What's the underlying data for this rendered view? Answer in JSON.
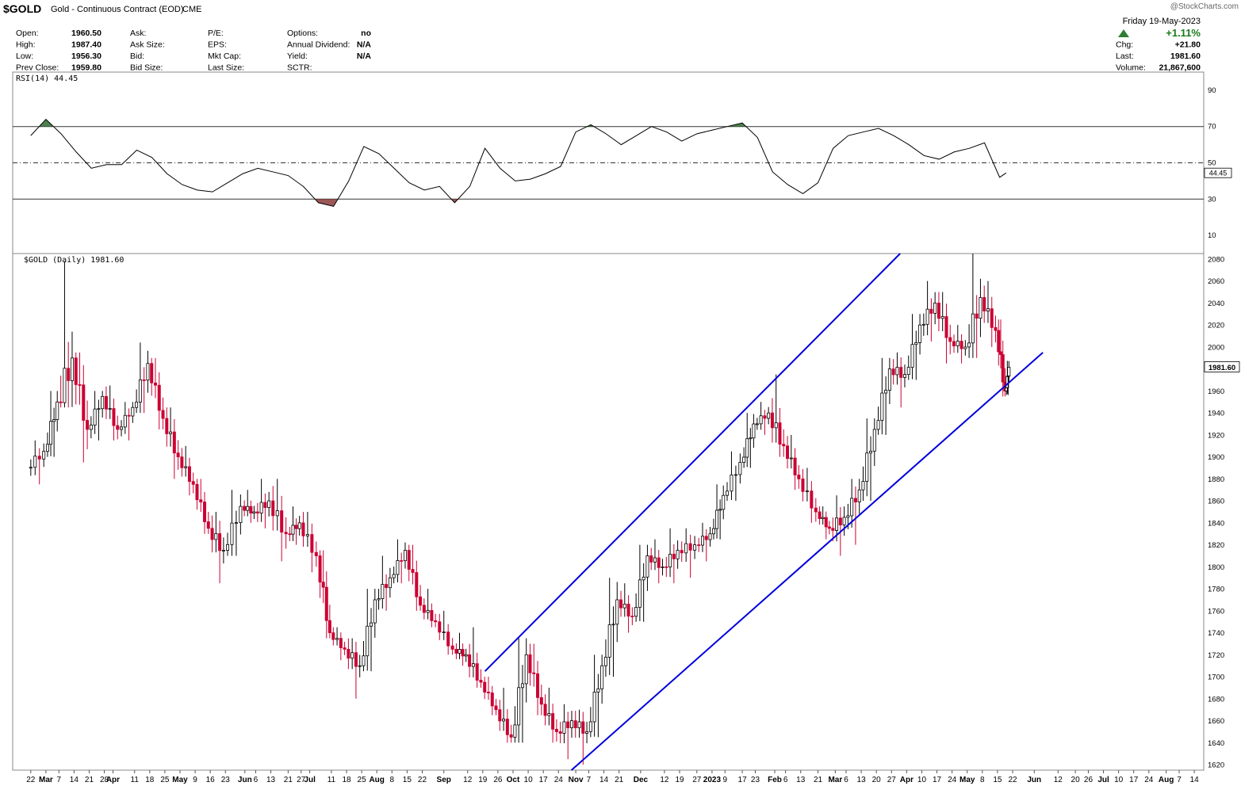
{
  "header": {
    "symbol": "$GOLD",
    "description": "Gold - Continuous Contract (EOD)",
    "exchange": "CME",
    "watermark": "@StockCharts.com",
    "date": "Friday  19-May-2023",
    "change_pct": "+1.11%",
    "quote": [
      {
        "label": "Open:",
        "value": "1960.50"
      },
      {
        "label": "High:",
        "value": "1987.40"
      },
      {
        "label": "Low:",
        "value": "1956.30"
      },
      {
        "label": "Prev Close:",
        "value": "1959.80"
      }
    ],
    "book": [
      {
        "label": "Ask:",
        "value": ""
      },
      {
        "label": "Ask Size:",
        "value": ""
      },
      {
        "label": "Bid:",
        "value": ""
      },
      {
        "label": "Bid Size:",
        "value": ""
      }
    ],
    "fundamentals": [
      {
        "label": "P/E:",
        "value": ""
      },
      {
        "label": "EPS:",
        "value": ""
      },
      {
        "label": "Mkt Cap:",
        "value": ""
      },
      {
        "label": "Last Size:",
        "value": ""
      }
    ],
    "other": [
      {
        "label": "Options:",
        "value": "no"
      },
      {
        "label": "Annual Dividend:",
        "value": "N/A"
      },
      {
        "label": "Yield:",
        "value": "N/A"
      },
      {
        "label": "SCTR:",
        "value": ""
      }
    ],
    "summary": [
      {
        "label": "Chg:",
        "value": "+21.80"
      },
      {
        "label": "Last:",
        "value": "1981.60"
      },
      {
        "label": "Volume:",
        "value": "21,867,600"
      }
    ]
  },
  "colors": {
    "up": "#000000",
    "down": "#cc0033",
    "trend": "#0000dd",
    "rsi_over": "#2e6b2e",
    "rsi_under": "#8b3a3a"
  },
  "chart_data": [
    {
      "type": "line",
      "title": "RSI(14) 44.45",
      "current_value_label": "44.45",
      "ylim": [
        0,
        100
      ],
      "yticks": [
        10,
        30,
        50,
        70,
        90
      ],
      "reference_lines": [
        30,
        50,
        70
      ],
      "x": [
        "2022-02-22",
        "2022-03-01",
        "2022-03-08",
        "2022-03-15",
        "2022-03-22",
        "2022-03-29",
        "2022-04-05",
        "2022-04-12",
        "2022-04-19",
        "2022-04-26",
        "2022-05-03",
        "2022-05-10",
        "2022-05-17",
        "2022-05-24",
        "2022-05-31",
        "2022-06-07",
        "2022-06-14",
        "2022-06-21",
        "2022-06-28",
        "2022-07-05",
        "2022-07-12",
        "2022-07-19",
        "2022-07-26",
        "2022-08-02",
        "2022-08-09",
        "2022-08-16",
        "2022-08-23",
        "2022-08-30",
        "2022-09-06",
        "2022-09-13",
        "2022-09-20",
        "2022-09-27",
        "2022-10-04",
        "2022-10-11",
        "2022-10-18",
        "2022-10-25",
        "2022-11-01",
        "2022-11-08",
        "2022-11-15",
        "2022-11-22",
        "2022-11-29",
        "2022-12-06",
        "2022-12-13",
        "2022-12-20",
        "2022-12-27",
        "2023-01-03",
        "2023-01-10",
        "2023-01-17",
        "2023-01-24",
        "2023-01-31",
        "2023-02-07",
        "2023-02-14",
        "2023-02-21",
        "2023-02-28",
        "2023-03-07",
        "2023-03-14",
        "2023-03-21",
        "2023-03-28",
        "2023-04-04",
        "2023-04-11",
        "2023-04-18",
        "2023-04-25",
        "2023-05-02",
        "2023-05-09",
        "2023-05-16",
        "2023-05-19"
      ],
      "values": [
        65,
        74,
        66,
        56,
        47,
        49,
        49,
        57,
        53,
        44,
        38,
        35,
        34,
        39,
        44,
        47,
        45,
        43,
        37,
        28,
        26,
        40,
        59,
        55,
        47,
        39,
        35,
        37,
        28,
        37,
        58,
        47,
        40,
        41,
        44,
        48,
        67,
        71,
        66,
        60,
        65,
        70,
        67,
        62,
        66,
        68,
        70,
        72,
        64,
        45,
        38,
        33,
        39,
        58,
        65,
        67,
        69,
        65,
        60,
        54,
        52,
        56,
        58,
        61,
        42,
        44.45
      ],
      "series": [
        {
          "name": "RSI(14)",
          "values": "see values"
        }
      ]
    },
    {
      "type": "candlestick",
      "title": "$GOLD (Daily) 1981.60",
      "current_value_label": "1981.60",
      "ylim": [
        1615,
        2085
      ],
      "yticks": [
        1620,
        1640,
        1660,
        1680,
        1700,
        1720,
        1740,
        1760,
        1780,
        1800,
        1820,
        1840,
        1860,
        1880,
        1900,
        1920,
        1940,
        1960,
        1980,
        2000,
        2020,
        2040,
        2060,
        2080
      ],
      "x_tick_labels": [
        {
          "d": "2022-02-22",
          "t": "22",
          "b": false
        },
        {
          "d": "2022-03-01",
          "t": "Mar",
          "b": true
        },
        {
          "d": "2022-03-07",
          "t": "7",
          "b": false
        },
        {
          "d": "2022-03-14",
          "t": "14",
          "b": false
        },
        {
          "d": "2022-03-21",
          "t": "21",
          "b": false
        },
        {
          "d": "2022-03-28",
          "t": "28",
          "b": false
        },
        {
          "d": "2022-04-01",
          "t": "Apr",
          "b": true
        },
        {
          "d": "2022-04-11",
          "t": "11",
          "b": false
        },
        {
          "d": "2022-04-18",
          "t": "18",
          "b": false
        },
        {
          "d": "2022-04-25",
          "t": "25",
          "b": false
        },
        {
          "d": "2022-05-02",
          "t": "May",
          "b": true
        },
        {
          "d": "2022-05-09",
          "t": "9",
          "b": false
        },
        {
          "d": "2022-05-16",
          "t": "16",
          "b": false
        },
        {
          "d": "2022-05-23",
          "t": "23",
          "b": false
        },
        {
          "d": "2022-06-01",
          "t": "Jun",
          "b": true
        },
        {
          "d": "2022-06-06",
          "t": "6",
          "b": false
        },
        {
          "d": "2022-06-13",
          "t": "13",
          "b": false
        },
        {
          "d": "2022-06-21",
          "t": "21",
          "b": false
        },
        {
          "d": "2022-06-27",
          "t": "27",
          "b": false
        },
        {
          "d": "2022-07-01",
          "t": "Jul",
          "b": true
        },
        {
          "d": "2022-07-11",
          "t": "11",
          "b": false
        },
        {
          "d": "2022-07-18",
          "t": "18",
          "b": false
        },
        {
          "d": "2022-07-25",
          "t": "25",
          "b": false
        },
        {
          "d": "2022-08-01",
          "t": "Aug",
          "b": true
        },
        {
          "d": "2022-08-08",
          "t": "8",
          "b": false
        },
        {
          "d": "2022-08-15",
          "t": "15",
          "b": false
        },
        {
          "d": "2022-08-22",
          "t": "22",
          "b": false
        },
        {
          "d": "2022-09-01",
          "t": "Sep",
          "b": true
        },
        {
          "d": "2022-09-12",
          "t": "12",
          "b": false
        },
        {
          "d": "2022-09-19",
          "t": "19",
          "b": false
        },
        {
          "d": "2022-09-26",
          "t": "26",
          "b": false
        },
        {
          "d": "2022-10-03",
          "t": "Oct",
          "b": true
        },
        {
          "d": "2022-10-10",
          "t": "10",
          "b": false
        },
        {
          "d": "2022-10-17",
          "t": "17",
          "b": false
        },
        {
          "d": "2022-10-24",
          "t": "24",
          "b": false
        },
        {
          "d": "2022-11-01",
          "t": "Nov",
          "b": true
        },
        {
          "d": "2022-11-07",
          "t": "7",
          "b": false
        },
        {
          "d": "2022-11-14",
          "t": "14",
          "b": false
        },
        {
          "d": "2022-11-21",
          "t": "21",
          "b": false
        },
        {
          "d": "2022-12-01",
          "t": "Dec",
          "b": true
        },
        {
          "d": "2022-12-12",
          "t": "12",
          "b": false
        },
        {
          "d": "2022-12-19",
          "t": "19",
          "b": false
        },
        {
          "d": "2022-12-27",
          "t": "27",
          "b": false
        },
        {
          "d": "2023-01-03",
          "t": "2023",
          "b": true
        },
        {
          "d": "2023-01-09",
          "t": "9",
          "b": false
        },
        {
          "d": "2023-01-17",
          "t": "17",
          "b": false
        },
        {
          "d": "2023-01-23",
          "t": "23",
          "b": false
        },
        {
          "d": "2023-02-01",
          "t": "Feb",
          "b": true
        },
        {
          "d": "2023-02-06",
          "t": "6",
          "b": false
        },
        {
          "d": "2023-02-13",
          "t": "13",
          "b": false
        },
        {
          "d": "2023-02-21",
          "t": "21",
          "b": false
        },
        {
          "d": "2023-03-01",
          "t": "Mar",
          "b": true
        },
        {
          "d": "2023-03-06",
          "t": "6",
          "b": false
        },
        {
          "d": "2023-03-13",
          "t": "13",
          "b": false
        },
        {
          "d": "2023-03-20",
          "t": "20",
          "b": false
        },
        {
          "d": "2023-03-27",
          "t": "27",
          "b": false
        },
        {
          "d": "2023-04-03",
          "t": "Apr",
          "b": true
        },
        {
          "d": "2023-04-10",
          "t": "10",
          "b": false
        },
        {
          "d": "2023-04-17",
          "t": "17",
          "b": false
        },
        {
          "d": "2023-04-24",
          "t": "24",
          "b": false
        },
        {
          "d": "2023-05-01",
          "t": "May",
          "b": true
        },
        {
          "d": "2023-05-08",
          "t": "8",
          "b": false
        },
        {
          "d": "2023-05-15",
          "t": "15",
          "b": false
        },
        {
          "d": "2023-05-22",
          "t": "22",
          "b": false
        },
        {
          "d": "2023-06-01",
          "t": "Jun",
          "b": true
        },
        {
          "d": "2023-06-12",
          "t": "12",
          "b": false
        },
        {
          "d": "2023-06-20",
          "t": "20",
          "b": false
        },
        {
          "d": "2023-06-26",
          "t": "26",
          "b": false
        },
        {
          "d": "2023-07-03",
          "t": "Jul",
          "b": true
        },
        {
          "d": "2023-07-10",
          "t": "10",
          "b": false
        },
        {
          "d": "2023-07-17",
          "t": "17",
          "b": false
        },
        {
          "d": "2023-07-24",
          "t": "24",
          "b": false
        },
        {
          "d": "2023-08-01",
          "t": "Aug",
          "b": true
        },
        {
          "d": "2023-08-07",
          "t": "7",
          "b": false
        },
        {
          "d": "2023-08-14",
          "t": "14",
          "b": false
        }
      ],
      "x_range": [
        "2022-02-14",
        "2023-08-18"
      ],
      "ohlc_weekly_approx": [
        [
          "2022-02-21",
          1890,
          1915,
          1875,
          1905
        ],
        [
          "2022-03-01",
          1905,
          1960,
          1900,
          1950
        ],
        [
          "2022-03-07",
          1950,
          2078,
          1945,
          1990
        ],
        [
          "2022-03-14",
          1990,
          1995,
          1895,
          1925
        ],
        [
          "2022-03-21",
          1925,
          1960,
          1915,
          1955
        ],
        [
          "2022-03-28",
          1955,
          1965,
          1915,
          1925
        ],
        [
          "2022-04-04",
          1925,
          1950,
          1915,
          1945
        ],
        [
          "2022-04-11",
          1945,
          2004,
          1940,
          1985
        ],
        [
          "2022-04-18",
          1985,
          1990,
          1925,
          1935
        ],
        [
          "2022-04-25",
          1935,
          1945,
          1880,
          1900
        ],
        [
          "2022-05-02",
          1900,
          1910,
          1865,
          1875
        ],
        [
          "2022-05-09",
          1875,
          1880,
          1830,
          1835
        ],
        [
          "2022-05-16",
          1835,
          1850,
          1785,
          1815
        ],
        [
          "2022-05-23",
          1815,
          1870,
          1810,
          1855
        ],
        [
          "2022-05-31",
          1855,
          1870,
          1840,
          1850
        ],
        [
          "2022-06-06",
          1850,
          1880,
          1835,
          1860
        ],
        [
          "2022-06-13",
          1860,
          1880,
          1805,
          1830
        ],
        [
          "2022-06-21",
          1830,
          1855,
          1820,
          1840
        ],
        [
          "2022-06-27",
          1840,
          1850,
          1795,
          1810
        ],
        [
          "2022-07-05",
          1810,
          1815,
          1735,
          1740
        ],
        [
          "2022-07-11",
          1740,
          1745,
          1715,
          1725
        ],
        [
          "2022-07-18",
          1725,
          1735,
          1680,
          1710
        ],
        [
          "2022-07-25",
          1710,
          1780,
          1705,
          1770
        ],
        [
          "2022-08-01",
          1770,
          1810,
          1760,
          1790
        ],
        [
          "2022-08-08",
          1790,
          1825,
          1785,
          1815
        ],
        [
          "2022-08-15",
          1815,
          1820,
          1760,
          1765
        ],
        [
          "2022-08-22",
          1765,
          1780,
          1745,
          1750
        ],
        [
          "2022-08-29",
          1750,
          1760,
          1720,
          1725
        ],
        [
          "2022-09-06",
          1725,
          1740,
          1710,
          1720
        ],
        [
          "2022-09-12",
          1720,
          1745,
          1690,
          1695
        ],
        [
          "2022-09-19",
          1695,
          1700,
          1665,
          1670
        ],
        [
          "2022-09-26",
          1670,
          1690,
          1640,
          1645
        ],
        [
          "2022-10-03",
          1645,
          1735,
          1640,
          1720
        ],
        [
          "2022-10-10",
          1720,
          1730,
          1665,
          1675
        ],
        [
          "2022-10-17",
          1675,
          1690,
          1640,
          1650
        ],
        [
          "2022-10-24",
          1650,
          1675,
          1625,
          1660
        ],
        [
          "2022-10-31",
          1660,
          1670,
          1620,
          1650
        ],
        [
          "2022-11-07",
          1650,
          1720,
          1645,
          1710
        ],
        [
          "2022-11-14",
          1710,
          1790,
          1700,
          1770
        ],
        [
          "2022-11-21",
          1770,
          1785,
          1740,
          1755
        ],
        [
          "2022-11-28",
          1755,
          1820,
          1750,
          1810
        ],
        [
          "2022-12-05",
          1810,
          1825,
          1785,
          1800
        ],
        [
          "2022-12-12",
          1800,
          1835,
          1785,
          1815
        ],
        [
          "2022-12-19",
          1815,
          1835,
          1790,
          1820
        ],
        [
          "2022-12-27",
          1820,
          1840,
          1805,
          1830
        ],
        [
          "2023-01-03",
          1830,
          1875,
          1825,
          1865
        ],
        [
          "2023-01-09",
          1865,
          1905,
          1860,
          1895
        ],
        [
          "2023-01-17",
          1895,
          1940,
          1890,
          1930
        ],
        [
          "2023-01-23",
          1930,
          1950,
          1920,
          1940
        ],
        [
          "2023-01-30",
          1940,
          1975,
          1900,
          1910
        ],
        [
          "2023-02-06",
          1910,
          1920,
          1870,
          1880
        ],
        [
          "2023-02-13",
          1880,
          1890,
          1840,
          1850
        ],
        [
          "2023-02-21",
          1850,
          1855,
          1825,
          1835
        ],
        [
          "2023-02-27",
          1835,
          1865,
          1810,
          1845
        ],
        [
          "2023-03-06",
          1845,
          1880,
          1820,
          1870
        ],
        [
          "2023-03-13",
          1870,
          1935,
          1860,
          1925
        ],
        [
          "2023-03-20",
          1925,
          1990,
          1920,
          1980
        ],
        [
          "2023-03-27",
          1980,
          1995,
          1945,
          1975
        ],
        [
          "2023-04-03",
          1975,
          2030,
          1970,
          2020
        ],
        [
          "2023-04-10",
          2020,
          2060,
          2005,
          2040
        ],
        [
          "2023-04-17",
          2040,
          2050,
          1985,
          2005
        ],
        [
          "2023-04-24",
          2005,
          2020,
          1985,
          2000
        ],
        [
          "2023-05-01",
          2000,
          2085,
          1990,
          2045
        ],
        [
          "2023-05-08",
          2045,
          2060,
          2000,
          2015
        ],
        [
          "2023-05-15",
          2015,
          2025,
          1955,
          1960
        ],
        [
          "2023-05-19",
          1960,
          1987.4,
          1956.3,
          1981.6
        ]
      ],
      "trendlines": [
        {
          "from": [
            "2022-09-20",
            1705
          ],
          "to": [
            "2023-03-31",
            2085
          ]
        },
        {
          "from": [
            "2022-10-30",
            1615
          ],
          "to": [
            "2023-06-05",
            1995
          ]
        }
      ]
    }
  ]
}
